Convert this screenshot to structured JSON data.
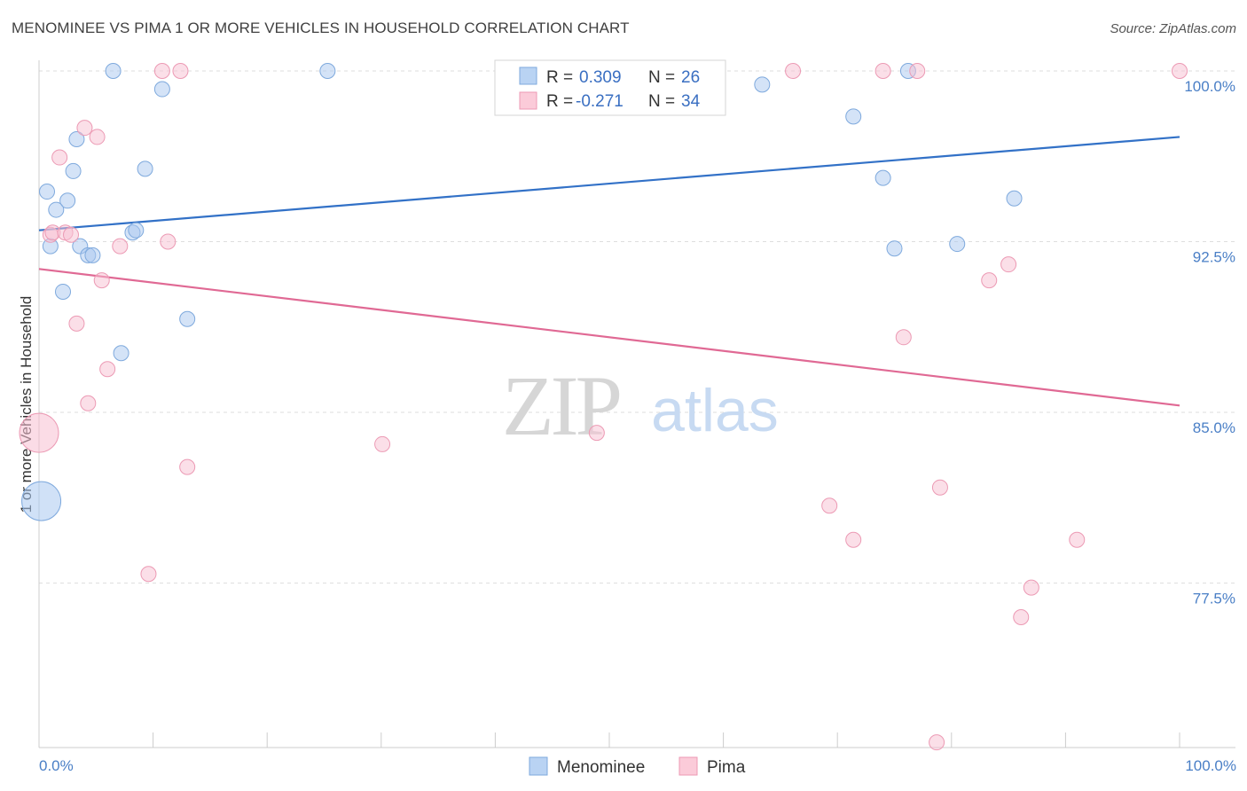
{
  "title": "MENOMINEE VS PIMA 1 OR MORE VEHICLES IN HOUSEHOLD CORRELATION CHART",
  "source": "Source: ZipAtlas.com",
  "watermark": {
    "zip": "ZIP",
    "atlas": "atlas"
  },
  "chart_data": {
    "type": "scatter",
    "title": "MENOMINEE VS PIMA 1 OR MORE VEHICLES IN HOUSEHOLD CORRELATION CHART",
    "xlabel": "",
    "ylabel": "1 or more Vehicles in Household",
    "xlim": [
      0,
      100
    ],
    "ylim": [
      70.8,
      101.1
    ],
    "x_tick_labels": [
      "0.0%",
      "100.0%"
    ],
    "y_ticks": [
      100.0,
      92.5,
      85.0,
      77.5
    ],
    "y_tick_labels": [
      "100.0%",
      "92.5%",
      "85.0%",
      "77.5%"
    ],
    "grid": true,
    "legend_top": [
      {
        "r_label": "R =",
        "r_value": "0.309",
        "n_label": "N =",
        "n_value": "26",
        "color": "#a9c8f0"
      },
      {
        "r_label": "R =",
        "r_value": "-0.271",
        "n_label": "N =",
        "n_value": "34",
        "color": "#f5b3c8"
      }
    ],
    "series": [
      {
        "name": "Menominee",
        "color": "#a9c8f0",
        "stroke": "#7ea9dd",
        "line_color": "#3271c7",
        "trend": {
          "x": [
            0,
            100
          ],
          "y": [
            93.0,
            97.1
          ]
        },
        "points": [
          {
            "x": 0.2,
            "y": 81.1,
            "big": true
          },
          {
            "x": 0.7,
            "y": 94.7
          },
          {
            "x": 1.0,
            "y": 92.3
          },
          {
            "x": 1.5,
            "y": 93.9
          },
          {
            "x": 2.1,
            "y": 90.3
          },
          {
            "x": 2.5,
            "y": 94.3
          },
          {
            "x": 3.0,
            "y": 95.6
          },
          {
            "x": 3.3,
            "y": 97.0
          },
          {
            "x": 3.6,
            "y": 92.3
          },
          {
            "x": 4.3,
            "y": 91.9
          },
          {
            "x": 4.7,
            "y": 91.9
          },
          {
            "x": 6.5,
            "y": 100.0
          },
          {
            "x": 7.2,
            "y": 87.6
          },
          {
            "x": 8.2,
            "y": 92.9
          },
          {
            "x": 8.5,
            "y": 93.0
          },
          {
            "x": 9.3,
            "y": 95.7
          },
          {
            "x": 10.8,
            "y": 99.2
          },
          {
            "x": 13.0,
            "y": 89.1
          },
          {
            "x": 25.3,
            "y": 100.0
          },
          {
            "x": 63.4,
            "y": 99.4
          },
          {
            "x": 71.4,
            "y": 98.0
          },
          {
            "x": 74.0,
            "y": 95.3
          },
          {
            "x": 75.0,
            "y": 92.2
          },
          {
            "x": 76.2,
            "y": 100.0
          },
          {
            "x": 80.5,
            "y": 92.4
          },
          {
            "x": 85.5,
            "y": 94.4
          }
        ]
      },
      {
        "name": "Pima",
        "color": "#f8c0d2",
        "stroke": "#ec9ab4",
        "line_color": "#e06994",
        "trend": {
          "x": [
            0,
            100
          ],
          "y": [
            91.3,
            85.3
          ]
        },
        "points": [
          {
            "x": 0.0,
            "y": 84.1,
            "big": true
          },
          {
            "x": 1.0,
            "y": 92.8
          },
          {
            "x": 1.2,
            "y": 92.9
          },
          {
            "x": 1.8,
            "y": 96.2
          },
          {
            "x": 2.3,
            "y": 92.9
          },
          {
            "x": 2.8,
            "y": 92.8
          },
          {
            "x": 3.3,
            "y": 88.9
          },
          {
            "x": 4.0,
            "y": 97.5
          },
          {
            "x": 4.3,
            "y": 85.4
          },
          {
            "x": 5.1,
            "y": 97.1
          },
          {
            "x": 5.5,
            "y": 90.8
          },
          {
            "x": 6.0,
            "y": 86.9
          },
          {
            "x": 7.1,
            "y": 92.3
          },
          {
            "x": 9.6,
            "y": 77.9
          },
          {
            "x": 10.8,
            "y": 100.0
          },
          {
            "x": 11.3,
            "y": 92.5
          },
          {
            "x": 12.4,
            "y": 100.0
          },
          {
            "x": 13.0,
            "y": 82.6
          },
          {
            "x": 30.1,
            "y": 83.6
          },
          {
            "x": 48.9,
            "y": 84.1
          },
          {
            "x": 66.1,
            "y": 100.0
          },
          {
            "x": 69.3,
            "y": 80.9
          },
          {
            "x": 71.4,
            "y": 79.4
          },
          {
            "x": 74.0,
            "y": 100.0
          },
          {
            "x": 75.8,
            "y": 88.3
          },
          {
            "x": 77.0,
            "y": 100.0
          },
          {
            "x": 78.7,
            "y": 70.5
          },
          {
            "x": 79.0,
            "y": 81.7
          },
          {
            "x": 83.3,
            "y": 90.8
          },
          {
            "x": 85.0,
            "y": 91.5
          },
          {
            "x": 86.1,
            "y": 76.0
          },
          {
            "x": 87.0,
            "y": 77.3
          },
          {
            "x": 91.0,
            "y": 79.4
          },
          {
            "x": 100.0,
            "y": 100.0
          }
        ]
      }
    ]
  }
}
